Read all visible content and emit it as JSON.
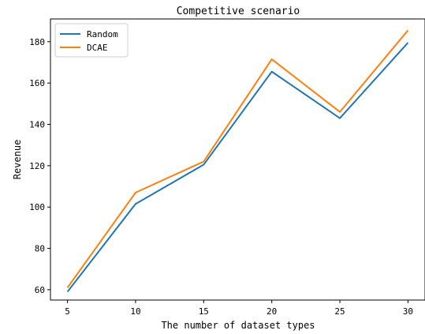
{
  "chart_data": {
    "type": "line",
    "title": "Competitive scenario",
    "xlabel": "The number of dataset types",
    "ylabel": "Revenue",
    "x": [
      5,
      10,
      15,
      20,
      25,
      30
    ],
    "xticks": [
      "5",
      "10",
      "15",
      "20",
      "25",
      "30"
    ],
    "yticks": [
      "60",
      "80",
      "100",
      "120",
      "140",
      "160",
      "180"
    ],
    "xlim": [
      3.75,
      31.25
    ],
    "ylim": [
      55,
      191
    ],
    "grid": false,
    "legend": "upper-left",
    "series": [
      {
        "name": "Random",
        "color": "#1f77b4",
        "values": [
          59,
          101.5,
          120.5,
          165.5,
          143,
          179.5
        ]
      },
      {
        "name": "DCAE",
        "color": "#ff7f0e",
        "values": [
          61,
          107,
          122,
          171.5,
          146,
          185.5
        ]
      }
    ]
  }
}
